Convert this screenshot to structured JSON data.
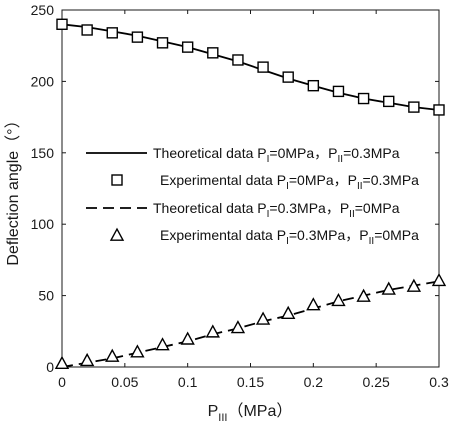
{
  "chart_data": {
    "type": "line",
    "xlabel": "P",
    "xlabel_sub": "III",
    "xlabel_unit": "（MPa）",
    "ylabel": "Deflection angle（°）",
    "xlim": [
      0,
      0.3
    ],
    "ylim": [
      0,
      250
    ],
    "xticks": [
      "0",
      "0.05",
      "0.1",
      "0.15",
      "0.2",
      "0.25",
      "0.3"
    ],
    "xtick_values": [
      0,
      0.05,
      0.1,
      0.15,
      0.2,
      0.25,
      0.3
    ],
    "yticks": [
      "0",
      "50",
      "100",
      "150",
      "200",
      "250"
    ],
    "ytick_values": [
      0,
      50,
      100,
      150,
      200,
      250
    ],
    "legend_position": "middle-right",
    "series": [
      {
        "style": "solid-line",
        "color": "#000000",
        "legend": [
          "Theoretical data  P",
          "I",
          "=0MPa，P",
          "II",
          "=0.3MPa"
        ],
        "x": [
          0,
          0.02,
          0.04,
          0.06,
          0.08,
          0.1,
          0.12,
          0.14,
          0.16,
          0.18,
          0.2,
          0.22,
          0.24,
          0.26,
          0.28,
          0.3
        ],
        "values": [
          240,
          238,
          235,
          232,
          228,
          224,
          219,
          214,
          208,
          202,
          197,
          192,
          188,
          185,
          182,
          180
        ]
      },
      {
        "style": "square-marker",
        "color": "#000000",
        "legend": [
          "Experimental data  P",
          "I",
          "=0MPa，P",
          "II",
          "=0.3MPa"
        ],
        "x": [
          0,
          0.02,
          0.04,
          0.06,
          0.08,
          0.1,
          0.12,
          0.14,
          0.16,
          0.18,
          0.2,
          0.22,
          0.24,
          0.26,
          0.28,
          0.3
        ],
        "values": [
          240,
          236,
          234,
          231,
          227,
          224,
          220,
          215,
          210,
          203,
          197,
          193,
          188,
          186,
          182,
          180
        ]
      },
      {
        "style": "dashed-line",
        "color": "#000000",
        "legend": [
          "Theoretical data  P",
          "I",
          "=0.3MPa，P",
          "II",
          "=0MPa"
        ],
        "x": [
          0,
          0.02,
          0.04,
          0.06,
          0.08,
          0.1,
          0.12,
          0.14,
          0.16,
          0.18,
          0.2,
          0.22,
          0.24,
          0.26,
          0.28,
          0.3
        ],
        "values": [
          0,
          3,
          6,
          10,
          14,
          18,
          23,
          27,
          32,
          36,
          41,
          46,
          50,
          54,
          57,
          60
        ]
      },
      {
        "style": "triangle-marker",
        "color": "#000000",
        "legend": [
          "Experimental data  P",
          "I",
          "=0.3MPa，P",
          "II",
          "=0MPa"
        ],
        "x": [
          0,
          0.02,
          0.04,
          0.06,
          0.08,
          0.1,
          0.12,
          0.14,
          0.16,
          0.18,
          0.2,
          0.22,
          0.24,
          0.26,
          0.28,
          0.3
        ],
        "values": [
          2,
          4,
          7,
          10,
          15,
          19,
          24,
          27,
          33,
          37,
          43,
          46,
          49,
          54,
          56,
          60
        ]
      }
    ]
  }
}
